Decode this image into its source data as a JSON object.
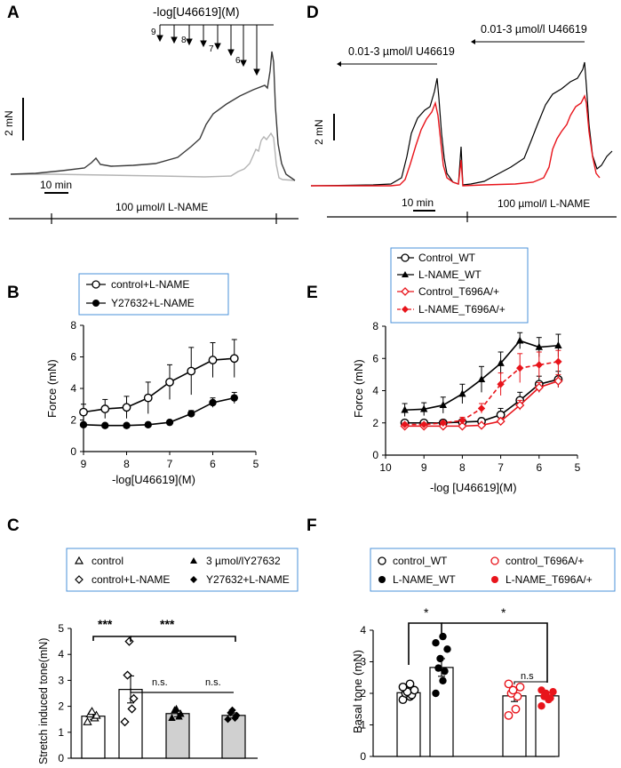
{
  "panel_letters": [
    "A",
    "B",
    "C",
    "D",
    "E",
    "F"
  ],
  "panelA": {
    "title": "-log[U46619](M)",
    "conc_labels": [
      "9",
      "8",
      "7",
      "6"
    ],
    "scale_label": "2 mN",
    "time_label": "10 min",
    "condition_label": "100 µmol/l L-NAME"
  },
  "panelD": {
    "label_left": "0.01-3 µmol/l U46619",
    "label_right": "0.01-3 µmol/l U46619",
    "scale_label": "2 mN",
    "time_label": "10 min",
    "condition_label": "100 µmol/l L-NAME"
  },
  "chart_data": [
    {
      "panel": "B",
      "type": "line",
      "xlabel": "-log[U46619](M)",
      "ylabel": "Force (mN)",
      "xlim": [
        9,
        5
      ],
      "ylim": [
        0,
        8
      ],
      "xticks": [
        9,
        8,
        7,
        6,
        5
      ],
      "yticks": [
        0,
        2,
        4,
        6,
        8
      ],
      "x": [
        9,
        8.5,
        8,
        7.5,
        7,
        6.5,
        6,
        5.5
      ],
      "series": [
        {
          "name": "control+L-NAME",
          "marker": "open-circle",
          "color": "#000000",
          "values": [
            2.5,
            2.7,
            2.8,
            3.4,
            4.4,
            5.1,
            5.8,
            5.9
          ],
          "errors": [
            0.5,
            0.6,
            0.7,
            1.0,
            1.1,
            1.5,
            1.1,
            1.2
          ]
        },
        {
          "name": "Y27632+L-NAME",
          "marker": "filled-circle",
          "color": "#000000",
          "values": [
            1.7,
            1.65,
            1.65,
            1.7,
            1.85,
            2.4,
            3.1,
            3.4
          ],
          "errors": [
            0.1,
            0.1,
            0.1,
            0.1,
            0.15,
            0.2,
            0.3,
            0.35
          ]
        }
      ]
    },
    {
      "panel": "E",
      "type": "line",
      "xlabel": "-log [U46619](M)",
      "ylabel": "Force (mN)",
      "xlim": [
        10,
        5
      ],
      "ylim": [
        0,
        8
      ],
      "xticks": [
        10,
        9,
        8,
        7,
        6,
        5
      ],
      "yticks": [
        0,
        2,
        4,
        6,
        8
      ],
      "x": [
        9.5,
        9,
        8.5,
        8,
        7.5,
        7,
        6.5,
        6,
        5.5
      ],
      "series": [
        {
          "name": "Control_WT",
          "marker": "open-circle",
          "color": "#000000",
          "dash": false,
          "values": [
            2.0,
            2.0,
            2.0,
            2.05,
            2.1,
            2.5,
            3.4,
            4.4,
            4.7
          ],
          "errors": [
            0.15,
            0.15,
            0.15,
            0.15,
            0.2,
            0.4,
            0.5,
            0.5,
            0.5
          ]
        },
        {
          "name": "L-NAME_WT",
          "marker": "filled-triangle",
          "color": "#000000",
          "dash": false,
          "values": [
            2.8,
            2.85,
            3.1,
            3.8,
            4.7,
            5.7,
            7.1,
            6.7,
            6.8
          ],
          "errors": [
            0.4,
            0.4,
            0.5,
            0.6,
            0.8,
            0.7,
            0.5,
            0.6,
            0.7
          ]
        },
        {
          "name": "Control_T696A/+",
          "marker": "open-diamond",
          "color": "#e8141b",
          "dash": false,
          "values": [
            1.8,
            1.8,
            1.8,
            1.8,
            1.85,
            2.1,
            3.1,
            4.2,
            4.6
          ],
          "errors": [
            0.1,
            0.1,
            0.1,
            0.1,
            0.1,
            0.2,
            0.3,
            0.3,
            0.4
          ]
        },
        {
          "name": "L-NAME_T696A/+",
          "marker": "filled-diamond",
          "color": "#e8141b",
          "dash": true,
          "values": [
            1.9,
            1.9,
            2.0,
            2.15,
            2.9,
            4.4,
            5.4,
            5.6,
            5.8
          ],
          "errors": [
            0.1,
            0.1,
            0.1,
            0.2,
            0.3,
            0.7,
            0.9,
            0.8,
            0.7
          ]
        }
      ]
    },
    {
      "panel": "C",
      "type": "bar",
      "ylabel": "Stretch induced tone(mN)",
      "ylim": [
        0,
        5
      ],
      "yticks": [
        0,
        1,
        2,
        3,
        4,
        5
      ],
      "categories": [
        "control",
        "control+L-NAME",
        "3 µmol/lY27632",
        "Y27632+L-NAME"
      ],
      "legend_markers": [
        "open-triangle",
        "open-diamond",
        "filled-triangle",
        "filled-diamond"
      ],
      "bar_colors": [
        "#ffffff",
        "#ffffff",
        "#d0d0d0",
        "#d0d0d0"
      ],
      "values": [
        1.62,
        2.65,
        1.72,
        1.65
      ],
      "errors": [
        0.12,
        0.52,
        0.12,
        0.1
      ],
      "points": [
        [
          1.4,
          1.55,
          1.65,
          1.7,
          1.8
        ],
        [
          1.4,
          1.9,
          2.3,
          3.2,
          4.5
        ],
        [
          1.55,
          1.6,
          1.7,
          1.85,
          1.9
        ],
        [
          1.5,
          1.55,
          1.65,
          1.75,
          1.85
        ]
      ],
      "annotations": [
        "***",
        "***",
        "n.s.",
        "n.s."
      ]
    },
    {
      "panel": "F",
      "type": "bar",
      "ylabel": "Basal tone (mN)",
      "ylim": [
        0,
        4
      ],
      "yticks": [
        0,
        1,
        2,
        3,
        4
      ],
      "categories": [
        "control_WT",
        "L-NAME_WT",
        "control_T696A/+",
        "L-NAME_T696A/+"
      ],
      "legend_markers": [
        "open-circle",
        "filled-circle",
        "open-circle",
        "filled-circle"
      ],
      "bar_colors": [
        "#ffffff",
        "#ffffff",
        "#ffffff",
        "#ffffff"
      ],
      "point_colors": [
        "#000000",
        "#000000",
        "#e8141b",
        "#e8141b"
      ],
      "values": [
        2.02,
        2.82,
        1.92,
        1.92
      ],
      "errors": [
        0.1,
        0.28,
        0.18,
        0.1
      ],
      "points": [
        [
          1.8,
          1.9,
          1.95,
          2.0,
          2.05,
          2.1,
          2.2,
          2.3
        ],
        [
          2.0,
          2.4,
          2.7,
          2.8,
          3.1,
          3.4,
          3.6,
          3.8
        ],
        [
          1.3,
          1.5,
          1.9,
          2.0,
          2.1,
          2.2,
          2.3
        ],
        [
          1.6,
          1.8,
          1.85,
          1.9,
          2.0,
          2.05,
          2.1
        ]
      ],
      "annotations": [
        "*",
        "*",
        "n.s"
      ]
    }
  ]
}
